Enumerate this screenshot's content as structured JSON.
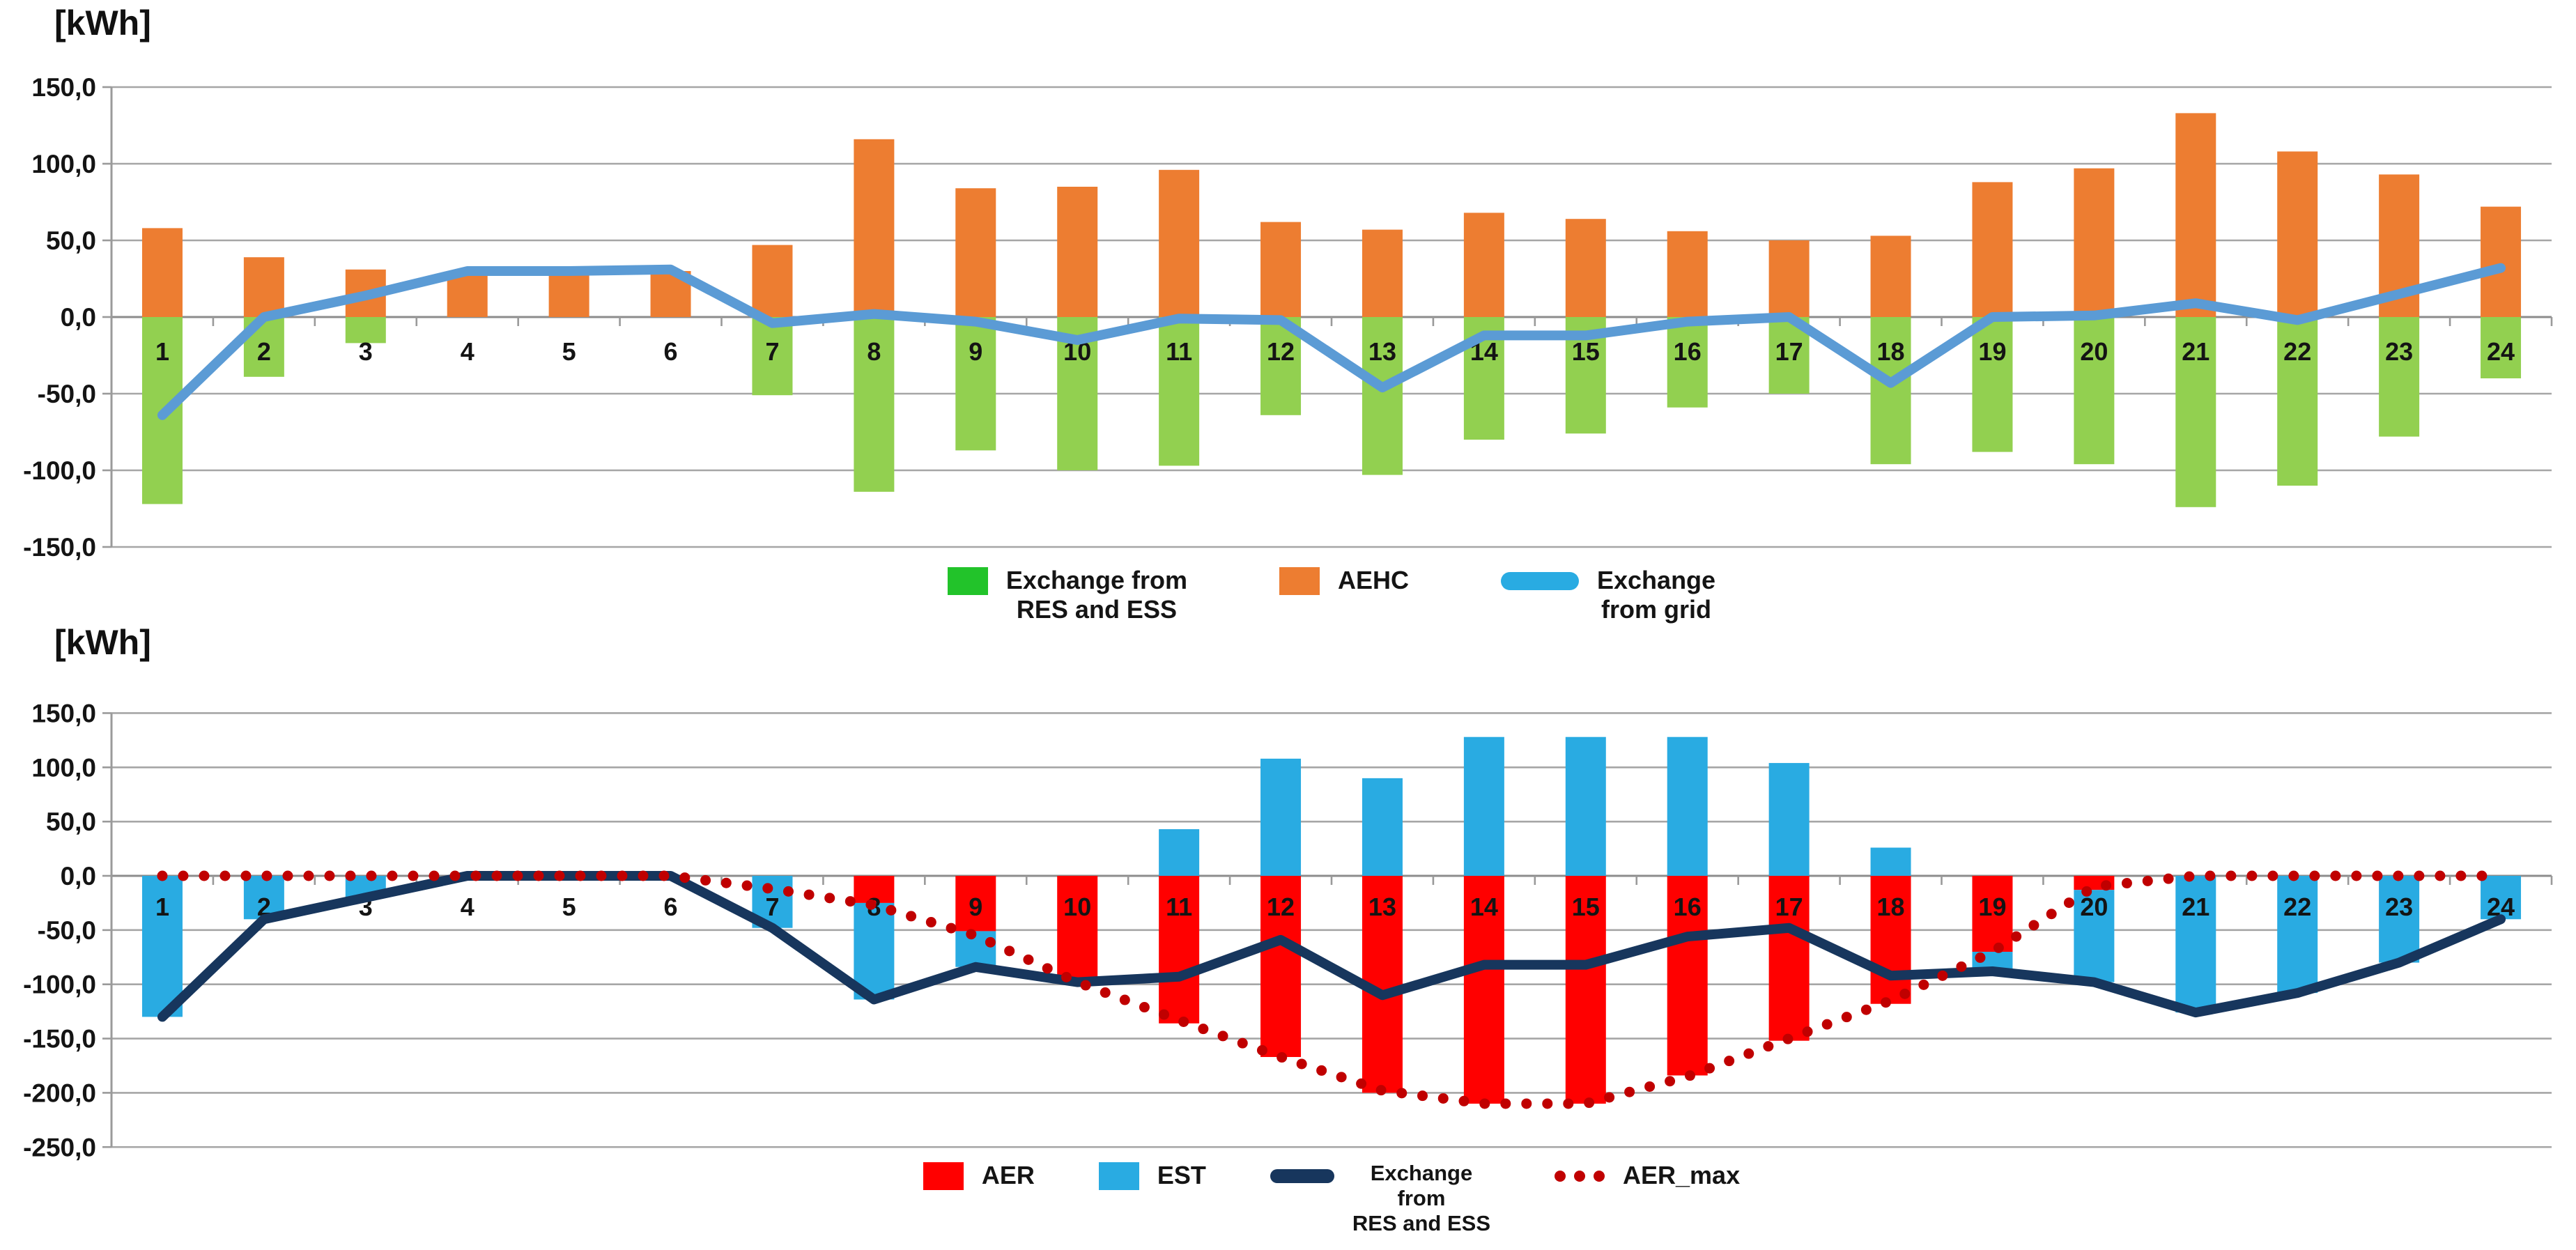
{
  "page": {
    "background": "#FFFFFF",
    "unit_label": "[kWh]"
  },
  "chart_data": [
    {
      "type": "bar",
      "subtype": "stacked-bars-with-line",
      "title": "[kWh]",
      "categories": [
        1,
        2,
        3,
        4,
        5,
        6,
        7,
        8,
        9,
        10,
        11,
        12,
        13,
        14,
        15,
        16,
        17,
        18,
        19,
        20,
        21,
        22,
        23,
        24
      ],
      "xlabel": "",
      "ylabel": "[kWh]",
      "ylim": [
        -150,
        150
      ],
      "ytick_step": 50,
      "ytick_labels": [
        "150,0",
        "100,0",
        "50,0",
        "0,0",
        "-50,0",
        "-100,0",
        "-150,0"
      ],
      "grid": true,
      "legend_position": "bottom-center",
      "colors": {
        "gridline": "#A6A6A6",
        "zero_line": "#8C8C8C",
        "axis": "#9A9A9A",
        "label_text": "#141414"
      },
      "series": [
        {
          "name": "Exchange from RES and ESS",
          "label": "Exchange from\nRES and ESS",
          "type": "bar",
          "color": "#92D050",
          "legend_color": "#22C32A",
          "values": [
            -122,
            -39,
            -17,
            0,
            0,
            0,
            -51,
            -114,
            -87,
            -100,
            -97,
            -64,
            -103,
            -80,
            -76,
            -59,
            -50,
            -96,
            -88,
            -96,
            -124,
            -110,
            -78,
            -40
          ]
        },
        {
          "name": "AEHC",
          "label": "AEHC",
          "type": "bar",
          "color": "#ED7D31",
          "legend_color": "#ED7D31",
          "values": [
            58,
            39,
            31,
            29,
            29,
            30,
            47,
            116,
            84,
            85,
            96,
            62,
            57,
            68,
            64,
            56,
            50,
            53,
            88,
            97,
            133,
            108,
            93,
            72
          ]
        },
        {
          "name": "Exchange from grid",
          "label": "Exchange\nfrom grid",
          "type": "line",
          "color": "#5B9BD5",
          "legend_color": "#29ABE2",
          "values": [
            -64,
            0,
            14,
            30,
            30,
            31,
            -4,
            2,
            -3,
            -15,
            -1,
            -2,
            -46,
            -12,
            -12,
            -3,
            0,
            -43,
            0,
            1,
            9,
            -2,
            15,
            32
          ]
        }
      ]
    },
    {
      "type": "bar",
      "subtype": "stacked-bars-with-line-and-dotted-limit",
      "title": "[kWh]",
      "categories": [
        1,
        2,
        3,
        4,
        5,
        6,
        7,
        8,
        9,
        10,
        11,
        12,
        13,
        14,
        15,
        16,
        17,
        18,
        19,
        20,
        21,
        22,
        23,
        24
      ],
      "xlabel": "",
      "ylabel": "[kWh]",
      "ylim": [
        -250,
        150
      ],
      "ytick_step": 50,
      "ytick_labels": [
        "150,0",
        "100,0",
        "50,0",
        "0,0",
        "-50,0",
        "-100,0",
        "-150,0",
        "-200,0",
        "-250,0"
      ],
      "grid": true,
      "legend_position": "bottom-center",
      "colors": {
        "gridline": "#A6A6A6",
        "zero_line": "#8C8C8C",
        "axis": "#9A9A9A",
        "label_text": "#141414"
      },
      "series": [
        {
          "name": "AER",
          "label": "AER",
          "type": "bar",
          "color": "#FF0000",
          "legend_color": "#FF0000",
          "values": [
            0,
            0,
            0,
            0,
            0,
            0,
            0,
            -25,
            -51,
            -98,
            -136,
            -167,
            -200,
            -210,
            -210,
            -184,
            -152,
            -118,
            -70,
            -13,
            0,
            0,
            0,
            0
          ]
        },
        {
          "name": "EST",
          "label": "EST",
          "type": "bar",
          "color": "#29ABE2",
          "legend_color": "#29ABE2",
          "values": [
            -130,
            -40,
            -20,
            0,
            0,
            0,
            -48,
            -89,
            -33,
            0,
            43,
            108,
            90,
            128,
            128,
            128,
            104,
            26,
            -18,
            -85,
            -126,
            -108,
            -80,
            -40
          ]
        },
        {
          "name": "Exchange from RES and ESS",
          "label": "Exchange\nfrom\nRES and ESS",
          "type": "line",
          "color": "#17365D",
          "legend_color": "#17365D",
          "values": [
            -130,
            -40,
            -20,
            0,
            0,
            0,
            -48,
            -114,
            -84,
            -98,
            -93,
            -59,
            -110,
            -82,
            -82,
            -56,
            -48,
            -92,
            -88,
            -98,
            -126,
            -108,
            -80,
            -40
          ]
        },
        {
          "name": "AER_max",
          "label": "AER_max",
          "type": "dotted",
          "color": "#C00000",
          "legend_color": "#C00000",
          "values": [
            0,
            0,
            0,
            0,
            0,
            0,
            -12,
            -27,
            -55,
            -98,
            -133,
            -167,
            -198,
            -210,
            -210,
            -185,
            -150,
            -115,
            -70,
            -10,
            0,
            0,
            0,
            0
          ]
        }
      ]
    }
  ]
}
